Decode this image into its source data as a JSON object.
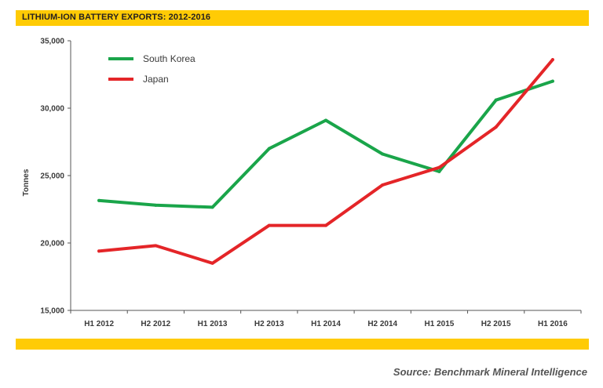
{
  "header": {
    "title": "LITHIUM-ION BATTERY EXPORTS: 2012-2016"
  },
  "footer": {
    "source": "Source: Benchmark Mineral Intelligence"
  },
  "colors": {
    "accent_bar": "#ffcb05"
  },
  "chart_data": {
    "type": "line",
    "title": "LITHIUM-ION BATTERY EXPORTS: 2012-2016",
    "xlabel": "",
    "ylabel": "Tonnes",
    "categories": [
      "H1 2012",
      "H2 2012",
      "H1 2013",
      "H2 2013",
      "H1 2014",
      "H2 2014",
      "H1 2015",
      "H2 2015",
      "H1 2016"
    ],
    "ylim": [
      15000,
      35000
    ],
    "yticks": [
      15000,
      20000,
      25000,
      30000,
      35000
    ],
    "ytick_labels": [
      "15,000",
      "20,000",
      "25,000",
      "30,000",
      "35,000"
    ],
    "grid": false,
    "legend_position": "top-left",
    "series": [
      {
        "name": "South Korea",
        "color": "#1aa54a",
        "values": [
          23150,
          22800,
          22650,
          27000,
          29100,
          26600,
          25300,
          30600,
          32000
        ]
      },
      {
        "name": "Japan",
        "color": "#e42528",
        "values": [
          19400,
          19800,
          18500,
          21300,
          21300,
          24300,
          25600,
          28600,
          33600
        ]
      }
    ]
  }
}
